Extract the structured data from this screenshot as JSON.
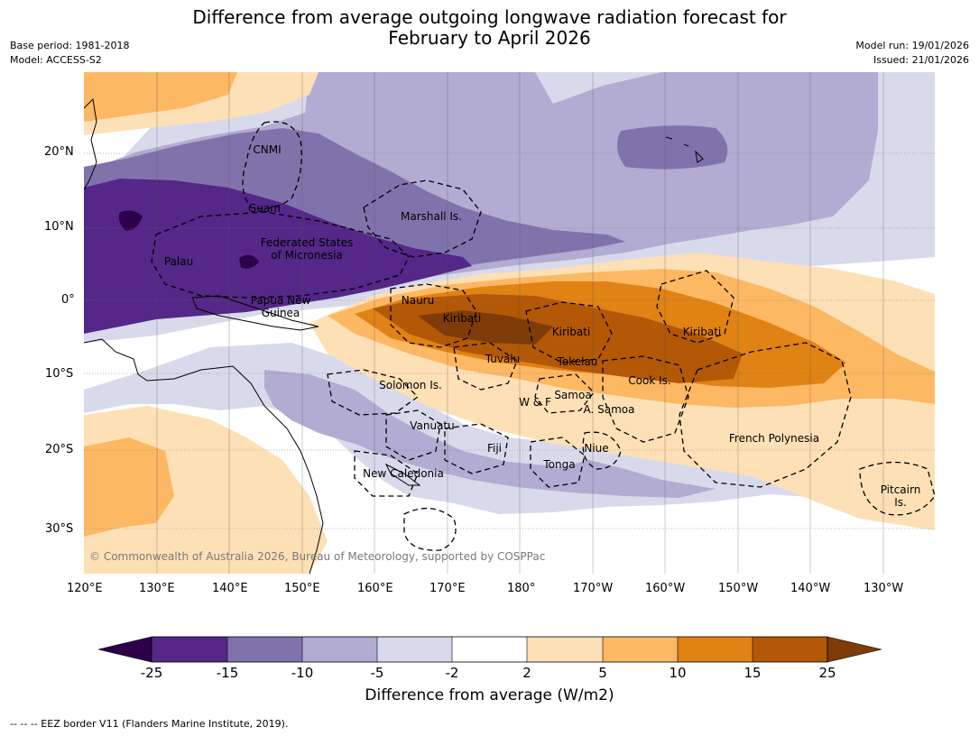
{
  "title_line1": "Difference from average outgoing longwave radiation forecast for",
  "title_line2": "February to April 2026",
  "meta_left": [
    "Base period: 1981-2018",
    "Model: ACCESS-S2"
  ],
  "meta_right": [
    "Model run: 19/01/2026",
    "Issued: 21/01/2026"
  ],
  "axes": {
    "lat_ticks": [
      "20°N",
      "10°N",
      "0°",
      "10°S",
      "20°S",
      "30°S"
    ],
    "lon_ticks": [
      "120°E",
      "130°E",
      "140°E",
      "150°E",
      "160°E",
      "170°E",
      "180°",
      "170°W",
      "160°W",
      "150°W",
      "140°W",
      "130°W"
    ]
  },
  "regions": {
    "cnmi": "CNMI",
    "guam": "Guam",
    "marshall": "Marshall Is.",
    "fsm_1": "Federated States",
    "fsm_2": "of Micronesia",
    "palau": "Palau",
    "png_1": "Papua New",
    "png_2": "Guinea",
    "nauru": "Nauru",
    "kiribati_w": "Kiribati",
    "kiribati_c": "Kiribati",
    "kiribati_e": "Kiribati",
    "tuvalu": "Tuvalu",
    "tokelau": "Tokelau",
    "cook": "Cook Is.",
    "solomon": "Solomon Is.",
    "samoa": "Samoa",
    "wf": "W & F",
    "asamoa": "A. Samoa",
    "vanuatu": "Vanuatu",
    "fiji": "Fiji",
    "niue": "Niue",
    "tonga": "Tonga",
    "frenchpoly": "French Polynesia",
    "newcal": "New Caledonia",
    "pitcairn_1": "Pitcairn",
    "pitcairn_2": "Is."
  },
  "copyright": "© Commonwealth of Australia 2026, Bureau of Meteorology, supported by COSPPac",
  "colorbar": {
    "title": "Difference from average (W/m2)",
    "ticks": [
      "-25",
      "-15",
      "-10",
      "-5",
      "-2",
      "2",
      "5",
      "10",
      "15",
      "25"
    ],
    "colors": {
      "under": "#2d004b",
      "bins": [
        "#542788",
        "#8073ac",
        "#b2abd2",
        "#d8daeb",
        "#ffffff",
        "#fee0b6",
        "#fdb863",
        "#e08214",
        "#b35806"
      ],
      "over": "#7f3b08"
    }
  },
  "footnote": "--  --  -- EEZ border V11 (Flanders Marine Institute, 2019)."
}
